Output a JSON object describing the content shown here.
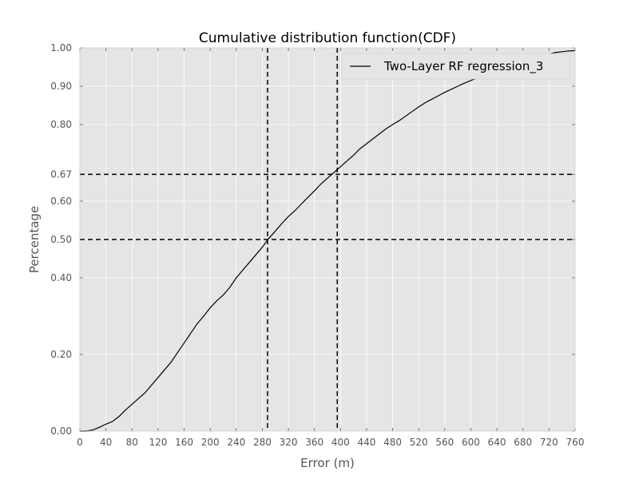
{
  "chart_data": {
    "type": "line",
    "title": "Cumulative distribution function(CDF)",
    "xlabel": "Error (m)",
    "ylabel": "Percentage",
    "xlim": [
      0,
      760
    ],
    "ylim": [
      0,
      1
    ],
    "xticks": [
      0,
      40,
      80,
      120,
      160,
      200,
      240,
      280,
      320,
      360,
      400,
      440,
      480,
      520,
      560,
      600,
      640,
      680,
      720,
      760
    ],
    "xtick_labels": [
      "0",
      "40",
      "80",
      "120",
      "160",
      "200",
      "240",
      "280",
      "320",
      "360",
      "400",
      "440",
      "480",
      "520",
      "560",
      "600",
      "640",
      "680",
      "720",
      "760"
    ],
    "yticks": [
      0.0,
      0.2,
      0.4,
      0.5,
      0.6,
      0.67,
      0.8,
      0.9,
      1.0
    ],
    "ytick_labels": [
      "0.00",
      "0.20",
      "0.40",
      "0.50",
      "0.60",
      "0.67",
      "0.80",
      "0.90",
      "1.00"
    ],
    "grid": true,
    "legend_position": "top-right",
    "background_color": "#e5e5e5",
    "grid_color": "#ffffff",
    "line_color": "#000000",
    "series": [
      {
        "name": "Two-Layer RF regression_3",
        "x": [
          0,
          10,
          20,
          30,
          40,
          50,
          60,
          70,
          80,
          90,
          100,
          110,
          120,
          130,
          140,
          150,
          160,
          170,
          180,
          190,
          200,
          210,
          220,
          230,
          240,
          250,
          260,
          270,
          280,
          290,
          300,
          310,
          320,
          330,
          340,
          350,
          360,
          370,
          380,
          390,
          400,
          410,
          420,
          430,
          440,
          450,
          460,
          470,
          480,
          490,
          500,
          510,
          520,
          530,
          540,
          550,
          560,
          570,
          580,
          590,
          600,
          610,
          620,
          630,
          640,
          650,
          660,
          670,
          680,
          690,
          700,
          710,
          720,
          730,
          740,
          750,
          760
        ],
        "y": [
          0.0,
          0.0,
          0.003,
          0.01,
          0.018,
          0.025,
          0.038,
          0.055,
          0.07,
          0.085,
          0.1,
          0.12,
          0.14,
          0.16,
          0.18,
          0.205,
          0.23,
          0.255,
          0.28,
          0.3,
          0.322,
          0.34,
          0.355,
          0.375,
          0.4,
          0.42,
          0.44,
          0.46,
          0.48,
          0.503,
          0.522,
          0.542,
          0.56,
          0.575,
          0.593,
          0.61,
          0.627,
          0.645,
          0.66,
          0.675,
          0.69,
          0.705,
          0.72,
          0.737,
          0.75,
          0.763,
          0.776,
          0.789,
          0.8,
          0.81,
          0.822,
          0.834,
          0.846,
          0.857,
          0.866,
          0.875,
          0.884,
          0.892,
          0.9,
          0.908,
          0.915,
          0.922,
          0.93,
          0.937,
          0.944,
          0.95,
          0.956,
          0.961,
          0.966,
          0.971,
          0.976,
          0.98,
          0.984,
          0.988,
          0.99,
          0.992,
          0.993
        ]
      }
    ],
    "reference_lines": [
      {
        "orientation": "vertical",
        "value": 288
      },
      {
        "orientation": "vertical",
        "value": 395
      },
      {
        "orientation": "horizontal",
        "value": 0.5
      },
      {
        "orientation": "horizontal",
        "value": 0.67
      }
    ]
  }
}
